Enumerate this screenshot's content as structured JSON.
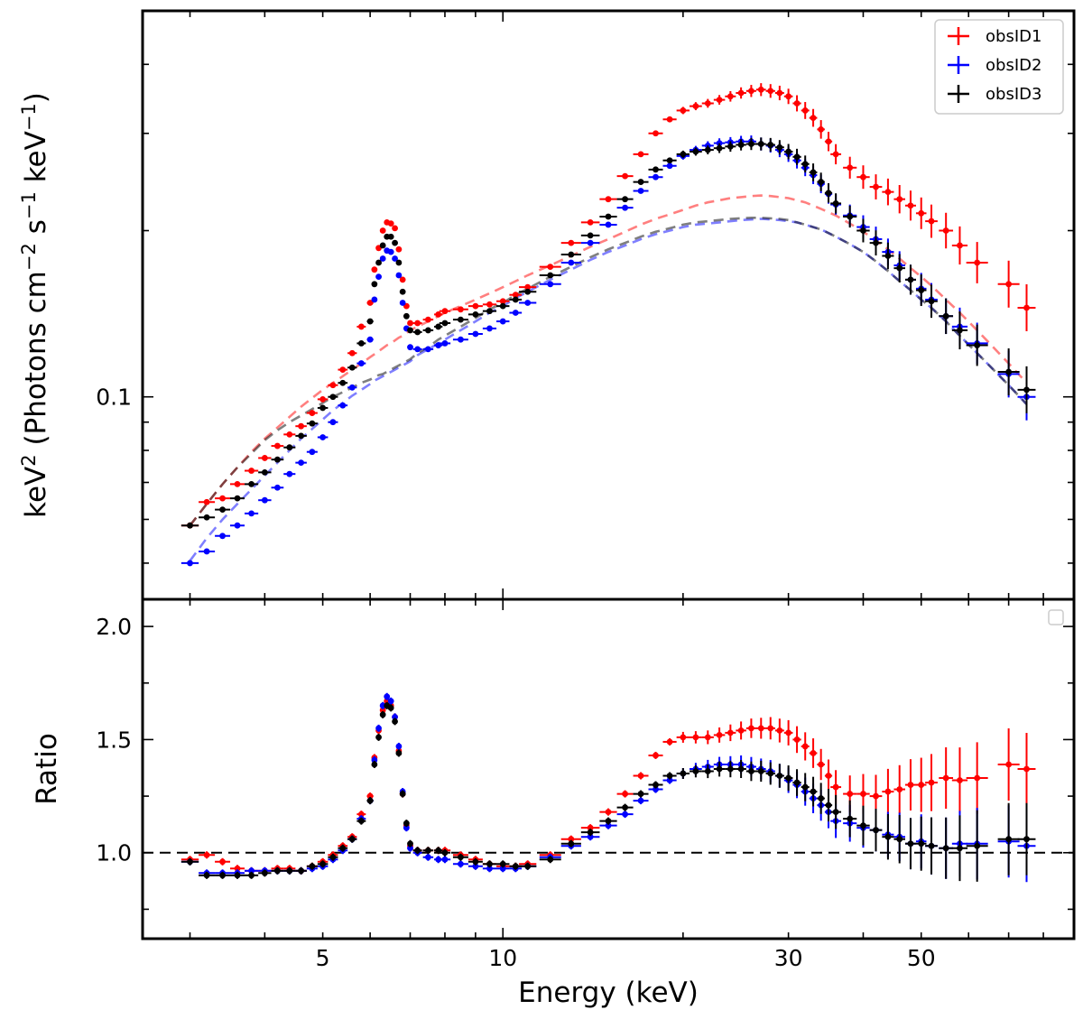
{
  "figure": {
    "xlabel": "Energy (keV)",
    "ylabel_top_parts": [
      "keV",
      "2",
      " (Photons cm",
      "−2",
      " s",
      "−1",
      " keV",
      "−1",
      ")"
    ],
    "ylabel_bottom": "Ratio"
  },
  "colors": {
    "obsID1": "#ff0000",
    "obsID2": "#0000ff",
    "obsID3": "#000000"
  },
  "chart_data": [
    {
      "type": "scatter",
      "title": "",
      "xlabel": "Energy (keV)",
      "ylabel": "keV2 (Photons cm−2 s−1 keV−1)",
      "xscale": "log",
      "yscale": "log",
      "xlim": [
        2.5,
        90
      ],
      "ylim": [
        0.043,
        0.5
      ],
      "x_tick_labels": [
        {
          "value": 5,
          "label": "5"
        },
        {
          "value": 10,
          "label": "10"
        },
        {
          "value": 30,
          "label": "30"
        },
        {
          "value": 50,
          "label": "50"
        }
      ],
      "y_tick_labels": [
        {
          "value": 0.1,
          "label": "0.1"
        }
      ],
      "legend": {
        "position": "top-right",
        "entries": [
          "obsID1",
          "obsID2",
          "obsID3"
        ]
      },
      "series": [
        {
          "name": "obsID1",
          "x": [
            3.0,
            3.2,
            3.4,
            3.6,
            3.8,
            4.0,
            4.2,
            4.4,
            4.6,
            4.8,
            5.0,
            5.2,
            5.4,
            5.6,
            5.8,
            6.0,
            6.1,
            6.2,
            6.3,
            6.4,
            6.5,
            6.6,
            6.7,
            6.8,
            6.9,
            7.0,
            7.2,
            7.5,
            7.8,
            8.0,
            8.5,
            9.0,
            9.5,
            10.0,
            10.5,
            11.0,
            12.0,
            13.0,
            14.0,
            15.0,
            16.0,
            17.0,
            18.0,
            19.0,
            20.0,
            21.0,
            22.0,
            23.0,
            24.0,
            25.0,
            26.0,
            27.0,
            28.0,
            29.0,
            30.0,
            31.0,
            32.0,
            33.0,
            34.0,
            35.0,
            36.0,
            38.0,
            40.0,
            42.0,
            44.0,
            46.0,
            48.0,
            50.0,
            52.0,
            55.0,
            58.0,
            62.0,
            70.0,
            75.0
          ],
          "y": [
            0.0585,
            0.0645,
            0.0655,
            0.0695,
            0.0735,
            0.0775,
            0.0815,
            0.0855,
            0.0885,
            0.0935,
            0.099,
            0.105,
            0.112,
            0.12,
            0.134,
            0.148,
            0.17,
            0.186,
            0.2,
            0.207,
            0.206,
            0.202,
            0.185,
            0.163,
            0.146,
            0.136,
            0.136,
            0.138,
            0.141,
            0.143,
            0.144,
            0.146,
            0.147,
            0.149,
            0.153,
            0.158,
            0.172,
            0.19,
            0.207,
            0.228,
            0.251,
            0.275,
            0.3,
            0.318,
            0.33,
            0.336,
            0.34,
            0.345,
            0.35,
            0.355,
            0.358,
            0.36,
            0.358,
            0.355,
            0.35,
            0.34,
            0.33,
            0.32,
            0.305,
            0.29,
            0.275,
            0.26,
            0.25,
            0.24,
            0.235,
            0.228,
            0.222,
            0.215,
            0.208,
            0.2,
            0.188,
            0.175,
            0.16,
            0.145
          ],
          "model_y": [
            0.0585,
            0.064,
            0.0695,
            0.0745,
            0.0795,
            0.084,
            0.088,
            0.092,
            0.096,
            0.0995,
            0.103,
            0.106,
            0.109,
            0.112,
            0.115,
            0.118,
            0.1195,
            0.121,
            0.1225,
            0.124,
            0.125,
            0.1265,
            0.128,
            0.129,
            0.1305,
            0.132,
            0.134,
            0.137,
            0.14,
            0.142,
            0.146,
            0.15,
            0.154,
            0.158,
            0.162,
            0.166,
            0.173,
            0.18,
            0.187,
            0.193,
            0.199,
            0.205,
            0.21,
            0.214,
            0.218,
            0.222,
            0.225,
            0.227,
            0.229,
            0.23,
            0.231,
            0.2315,
            0.231,
            0.23,
            0.229,
            0.227,
            0.225,
            0.222,
            0.219,
            0.216,
            0.213,
            0.206,
            0.199,
            0.192,
            0.185,
            0.178,
            0.171,
            0.165,
            0.159,
            0.15,
            0.142,
            0.132,
            0.115,
            0.106
          ],
          "ratio": [
            0.97,
            0.99,
            0.96,
            0.93,
            0.92,
            0.92,
            0.93,
            0.93,
            0.92,
            0.94,
            0.96,
            0.99,
            1.03,
            1.07,
            1.17,
            1.25,
            1.42,
            1.54,
            1.63,
            1.67,
            1.65,
            1.6,
            1.45,
            1.26,
            1.12,
            1.03,
            1.01,
            1.01,
            1.01,
            1.01,
            0.99,
            0.97,
            0.95,
            0.94,
            0.94,
            0.95,
            0.99,
            1.06,
            1.11,
            1.18,
            1.26,
            1.34,
            1.43,
            1.49,
            1.51,
            1.51,
            1.51,
            1.52,
            1.53,
            1.54,
            1.55,
            1.55,
            1.55,
            1.54,
            1.53,
            1.5,
            1.47,
            1.44,
            1.39,
            1.34,
            1.29,
            1.26,
            1.26,
            1.25,
            1.27,
            1.28,
            1.3,
            1.3,
            1.31,
            1.33,
            1.32,
            1.33,
            1.39,
            1.37
          ]
        },
        {
          "name": "obsID2",
          "x": [
            3.0,
            3.2,
            3.4,
            3.6,
            3.8,
            4.0,
            4.2,
            4.4,
            4.6,
            4.8,
            5.0,
            5.2,
            5.4,
            5.6,
            5.8,
            6.0,
            6.1,
            6.2,
            6.3,
            6.4,
            6.5,
            6.6,
            6.7,
            6.8,
            6.9,
            7.0,
            7.2,
            7.5,
            7.8,
            8.0,
            8.5,
            9.0,
            9.5,
            10.0,
            10.5,
            11.0,
            12.0,
            13.0,
            14.0,
            15.0,
            16.0,
            17.0,
            18.0,
            19.0,
            20.0,
            21.0,
            22.0,
            23.0,
            24.0,
            25.0,
            26.0,
            27.0,
            28.0,
            29.0,
            30.0,
            31.0,
            32.0,
            33.0,
            34.0,
            35.0,
            36.0,
            38.0,
            40.0,
            42.0,
            44.0,
            46.0,
            48.0,
            50.0,
            52.0,
            55.0,
            58.0,
            62.0,
            70.0,
            75.0
          ],
          "y": [
            0.05,
            0.0525,
            0.056,
            0.0585,
            0.0615,
            0.065,
            0.0685,
            0.0725,
            0.076,
            0.0795,
            0.0845,
            0.09,
            0.0965,
            0.104,
            0.115,
            0.127,
            0.15,
            0.165,
            0.178,
            0.184,
            0.183,
            0.178,
            0.166,
            0.148,
            0.133,
            0.123,
            0.122,
            0.122,
            0.124,
            0.125,
            0.127,
            0.13,
            0.133,
            0.137,
            0.142,
            0.148,
            0.16,
            0.175,
            0.19,
            0.205,
            0.22,
            0.236,
            0.25,
            0.262,
            0.273,
            0.28,
            0.285,
            0.288,
            0.289,
            0.29,
            0.29,
            0.287,
            0.285,
            0.28,
            0.275,
            0.268,
            0.26,
            0.252,
            0.243,
            0.233,
            0.223,
            0.213,
            0.203,
            0.193,
            0.183,
            0.173,
            0.163,
            0.157,
            0.15,
            0.14,
            0.134,
            0.125,
            0.11,
            0.1
          ],
          "model_y": [
            0.0505,
            0.0555,
            0.06,
            0.064,
            0.068,
            0.072,
            0.076,
            0.08,
            0.084,
            0.0875,
            0.091,
            0.0945,
            0.0975,
            0.1005,
            0.103,
            0.1055,
            0.107,
            0.108,
            0.109,
            0.11,
            0.111,
            0.112,
            0.113,
            0.114,
            0.115,
            0.116,
            0.119,
            0.122,
            0.125,
            0.127,
            0.132,
            0.137,
            0.142,
            0.146,
            0.151,
            0.155,
            0.163,
            0.17,
            0.177,
            0.183,
            0.188,
            0.193,
            0.197,
            0.2,
            0.203,
            0.205,
            0.206,
            0.207,
            0.208,
            0.209,
            0.2095,
            0.21,
            0.2095,
            0.209,
            0.208,
            0.207,
            0.205,
            0.203,
            0.201,
            0.198,
            0.195,
            0.189,
            0.183,
            0.176,
            0.169,
            0.162,
            0.156,
            0.15,
            0.145,
            0.137,
            0.129,
            0.12,
            0.105,
            0.097
          ],
          "ratio": [
            0.96,
            0.91,
            0.91,
            0.91,
            0.92,
            0.92,
            0.92,
            0.92,
            0.92,
            0.93,
            0.94,
            0.97,
            1.01,
            1.06,
            1.15,
            1.23,
            1.41,
            1.55,
            1.65,
            1.69,
            1.67,
            1.6,
            1.47,
            1.27,
            1.11,
            1.02,
            1.0,
            0.98,
            0.97,
            0.97,
            0.95,
            0.94,
            0.93,
            0.93,
            0.93,
            0.94,
            0.98,
            1.03,
            1.07,
            1.12,
            1.17,
            1.23,
            1.28,
            1.32,
            1.35,
            1.37,
            1.38,
            1.39,
            1.39,
            1.39,
            1.38,
            1.37,
            1.36,
            1.34,
            1.32,
            1.3,
            1.27,
            1.24,
            1.21,
            1.18,
            1.14,
            1.13,
            1.11,
            1.1,
            1.08,
            1.07,
            1.04,
            1.05,
            1.03,
            1.02,
            1.04,
            1.04,
            1.05,
            1.03
          ]
        },
        {
          "name": "obsID3",
          "x": [
            3.0,
            3.2,
            3.4,
            3.6,
            3.8,
            4.0,
            4.2,
            4.4,
            4.6,
            4.8,
            5.0,
            5.2,
            5.4,
            5.6,
            5.8,
            6.0,
            6.1,
            6.2,
            6.3,
            6.4,
            6.5,
            6.6,
            6.7,
            6.8,
            6.9,
            7.0,
            7.2,
            7.5,
            7.8,
            8.0,
            8.5,
            9.0,
            9.5,
            10.0,
            10.5,
            11.0,
            12.0,
            13.0,
            14.0,
            15.0,
            16.0,
            17.0,
            18.0,
            19.0,
            20.0,
            21.0,
            22.0,
            23.0,
            24.0,
            25.0,
            26.0,
            27.0,
            28.0,
            29.0,
            30.0,
            31.0,
            32.0,
            33.0,
            34.0,
            35.0,
            36.0,
            38.0,
            40.0,
            42.0,
            44.0,
            46.0,
            48.0,
            50.0,
            52.0,
            55.0,
            58.0,
            62.0,
            70.0,
            75.0
          ],
          "y": [
            0.0585,
            0.0605,
            0.0625,
            0.0655,
            0.0695,
            0.073,
            0.077,
            0.081,
            0.085,
            0.0895,
            0.0955,
            0.1,
            0.106,
            0.113,
            0.125,
            0.137,
            0.16,
            0.175,
            0.188,
            0.195,
            0.195,
            0.19,
            0.175,
            0.155,
            0.14,
            0.132,
            0.131,
            0.132,
            0.134,
            0.136,
            0.138,
            0.141,
            0.143,
            0.146,
            0.15,
            0.155,
            0.166,
            0.181,
            0.196,
            0.212,
            0.228,
            0.245,
            0.258,
            0.268,
            0.275,
            0.278,
            0.28,
            0.282,
            0.284,
            0.286,
            0.287,
            0.287,
            0.286,
            0.283,
            0.278,
            0.272,
            0.264,
            0.255,
            0.245,
            0.234,
            0.224,
            0.212,
            0.2,
            0.19,
            0.18,
            0.171,
            0.163,
            0.156,
            0.149,
            0.14,
            0.132,
            0.124,
            0.111,
            0.103
          ],
          "model_y": [
            0.0585,
            0.064,
            0.0695,
            0.0745,
            0.079,
            0.0835,
            0.087,
            0.09,
            0.0925,
            0.095,
            0.0975,
            0.1,
            0.102,
            0.104,
            0.106,
            0.1075,
            0.1085,
            0.1095,
            0.11,
            0.111,
            0.112,
            0.113,
            0.114,
            0.115,
            0.116,
            0.117,
            0.12,
            0.123,
            0.127,
            0.129,
            0.134,
            0.139,
            0.144,
            0.148,
            0.153,
            0.157,
            0.165,
            0.172,
            0.179,
            0.185,
            0.19,
            0.195,
            0.199,
            0.202,
            0.205,
            0.207,
            0.208,
            0.209,
            0.21,
            0.2105,
            0.211,
            0.211,
            0.2105,
            0.21,
            0.209,
            0.207,
            0.205,
            0.203,
            0.201,
            0.198,
            0.195,
            0.189,
            0.183,
            0.176,
            0.169,
            0.162,
            0.156,
            0.15,
            0.145,
            0.137,
            0.129,
            0.12,
            0.105,
            0.097
          ],
          "ratio": [
            0.96,
            0.9,
            0.9,
            0.9,
            0.9,
            0.91,
            0.92,
            0.92,
            0.92,
            0.94,
            0.95,
            0.98,
            1.02,
            1.06,
            1.14,
            1.23,
            1.39,
            1.51,
            1.61,
            1.65,
            1.64,
            1.58,
            1.44,
            1.26,
            1.13,
            1.04,
            1.01,
            1.01,
            1.01,
            1.0,
            0.98,
            0.96,
            0.95,
            0.95,
            0.94,
            0.94,
            0.97,
            1.04,
            1.09,
            1.14,
            1.2,
            1.26,
            1.3,
            1.34,
            1.35,
            1.36,
            1.36,
            1.37,
            1.37,
            1.37,
            1.36,
            1.36,
            1.35,
            1.34,
            1.33,
            1.31,
            1.29,
            1.27,
            1.24,
            1.21,
            1.18,
            1.15,
            1.12,
            1.1,
            1.07,
            1.06,
            1.04,
            1.04,
            1.03,
            1.02,
            1.02,
            1.03,
            1.06,
            1.06
          ]
        }
      ]
    },
    {
      "type": "scatter",
      "title": "",
      "xlabel": "Energy (keV)",
      "ylabel": "Ratio",
      "xscale": "log",
      "yscale": "linear",
      "xlim": [
        2.5,
        90
      ],
      "ylim": [
        0.62,
        2.12
      ],
      "reference_line": 1.0,
      "y_tick_labels": [
        {
          "value": 1.0,
          "label": "1.0"
        },
        {
          "value": 1.5,
          "label": "1.5"
        },
        {
          "value": 2.0,
          "label": "2.0"
        }
      ],
      "series_ref": [
        "obsID1",
        "obsID2",
        "obsID3"
      ]
    }
  ]
}
